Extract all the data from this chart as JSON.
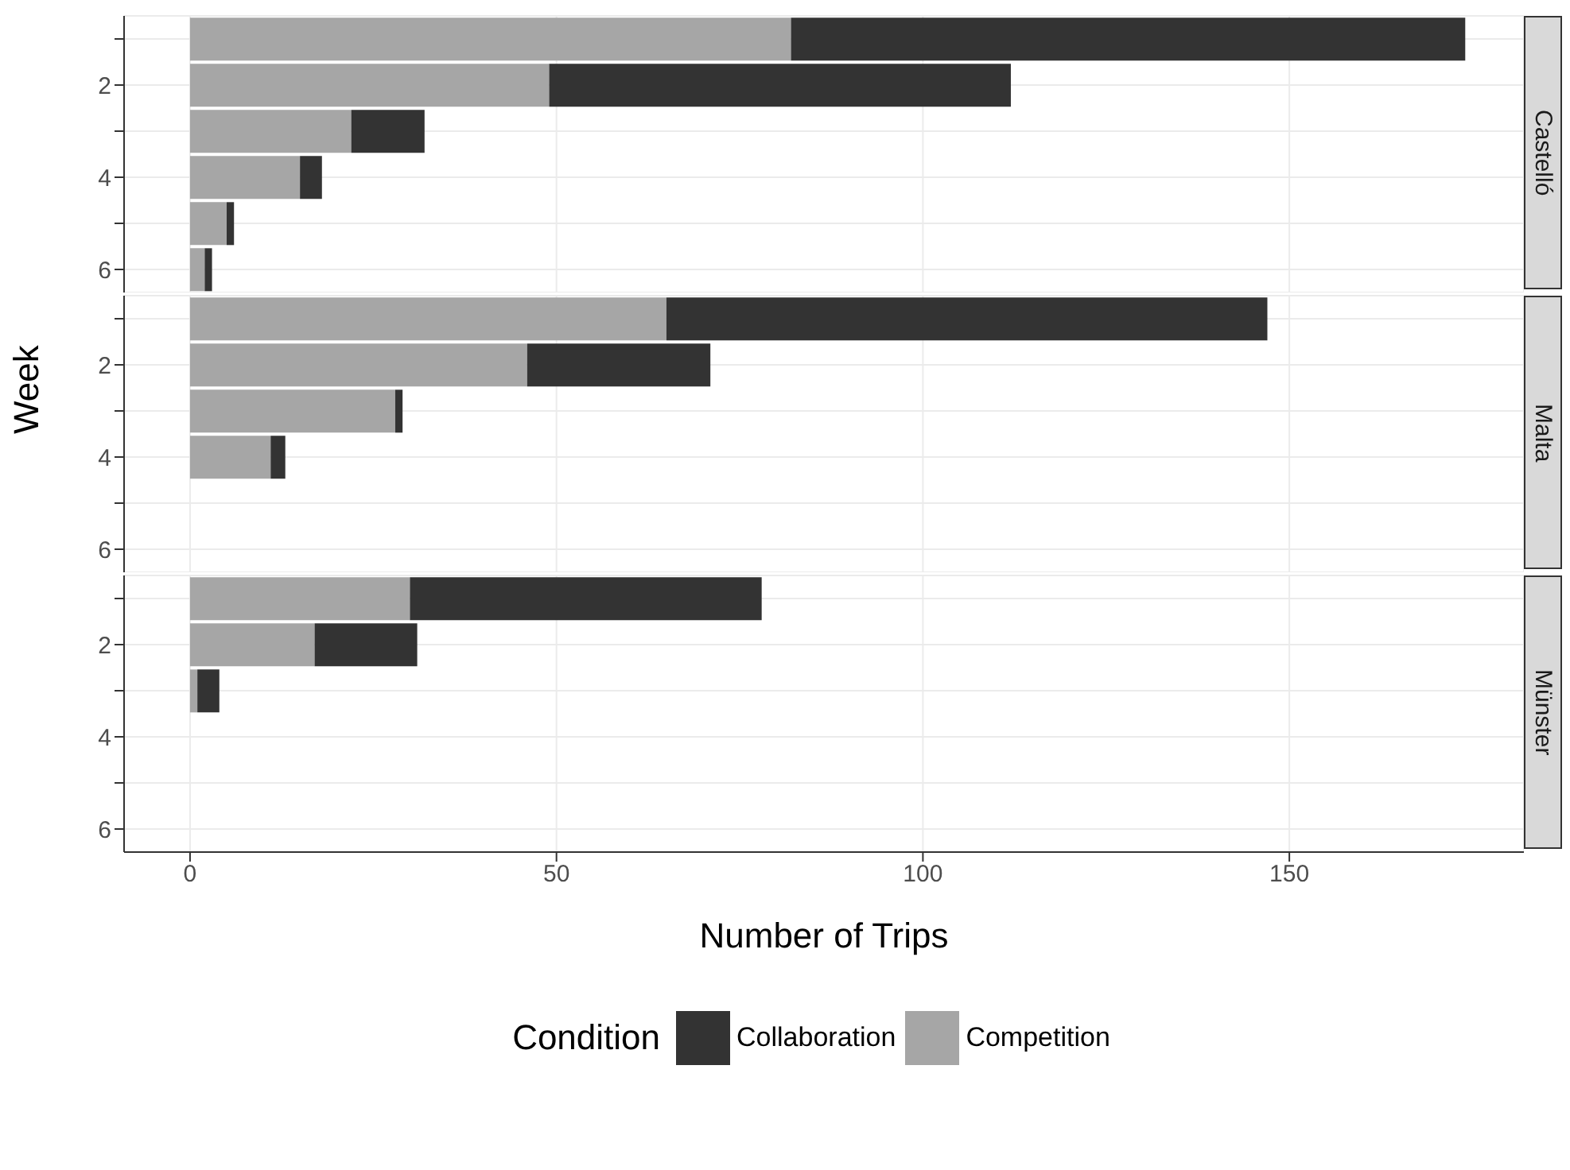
{
  "chart_data": [
    {
      "type": "bar",
      "orientation": "horizontal",
      "stacked": true,
      "title": "Castelló",
      "categories": [
        null,
        "2",
        null,
        "4",
        null,
        "6"
      ],
      "xlim": [
        -9,
        182
      ],
      "xticks": [
        0,
        50,
        100,
        150
      ],
      "grid": true,
      "tick_labels": "y",
      "series": [
        {
          "color": "#a6a6a6",
          "values": [
            82,
            49,
            22,
            15,
            5,
            2
          ]
        },
        {
          "color": "#333333",
          "values": [
            92,
            63,
            10,
            3,
            1,
            1
          ]
        }
      ]
    },
    {
      "type": "bar",
      "orientation": "horizontal",
      "stacked": true,
      "title": "Malta",
      "ylabel": "Week",
      "categories": [
        null,
        "2",
        null,
        "4",
        null,
        "6"
      ],
      "xlim": [
        -9,
        182
      ],
      "xticks": [
        0,
        50,
        100,
        150
      ],
      "grid": true,
      "tick_labels": "y",
      "series": [
        {
          "color": "#a6a6a6",
          "values": [
            65,
            46,
            28,
            11,
            null,
            null
          ]
        },
        {
          "color": "#333333",
          "values": [
            82,
            25,
            1,
            2,
            null,
            null
          ]
        }
      ]
    },
    {
      "type": "bar",
      "orientation": "horizontal",
      "stacked": true,
      "title": "Münster",
      "xlabel": "Number of Trips",
      "legend_title": "Condition",
      "legend": "bottom",
      "categories": [
        null,
        "2",
        null,
        "4",
        null,
        "6"
      ],
      "xlim": [
        -9,
        182
      ],
      "xticks": [
        0,
        50,
        100,
        150
      ],
      "grid": true,
      "series": [
        {
          "name": "Competition",
          "color": "#a6a6a6",
          "values": [
            30,
            17,
            1,
            null,
            null,
            null
          ]
        },
        {
          "name": "Collaboration",
          "color": "#333333",
          "values": [
            48,
            14,
            3,
            null,
            null,
            null
          ]
        }
      ]
    }
  ]
}
